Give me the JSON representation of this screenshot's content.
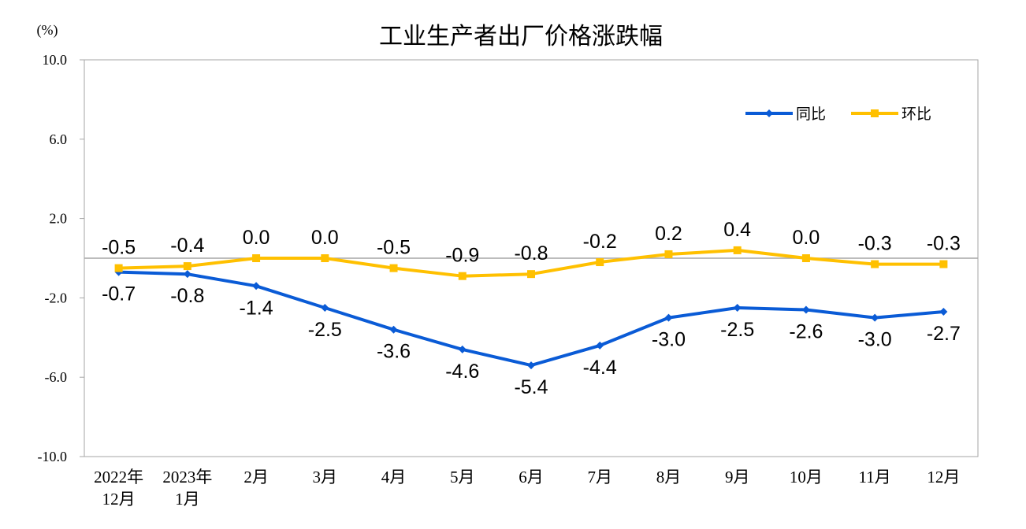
{
  "chart_data": {
    "type": "line",
    "title": "工业生产者出厂价格涨跌幅",
    "unit_label": "(%)",
    "categories": [
      [
        "2022年",
        "12月"
      ],
      [
        "2023年",
        "1月"
      ],
      [
        "2月"
      ],
      [
        "3月"
      ],
      [
        "4月"
      ],
      [
        "5月"
      ],
      [
        "6月"
      ],
      [
        "7月"
      ],
      [
        "8月"
      ],
      [
        "9月"
      ],
      [
        "10月"
      ],
      [
        "11月"
      ],
      [
        "12月"
      ]
    ],
    "series": [
      {
        "name": "同比",
        "color": "#0a5bd6",
        "marker": "diamond",
        "values": [
          -0.7,
          -0.8,
          -1.4,
          -2.5,
          -3.6,
          -4.6,
          -5.4,
          -4.4,
          -3.0,
          -2.5,
          -2.6,
          -3.0,
          -2.7
        ],
        "labels": [
          "-0.7",
          "-0.8",
          "-1.4",
          "-2.5",
          "-3.6",
          "-4.6",
          "-5.4",
          "-4.4",
          "-3.0",
          "-2.5",
          "-2.6",
          "-3.0",
          "-2.7"
        ],
        "label_position": "below"
      },
      {
        "name": "环比",
        "color": "#ffc000",
        "marker": "square",
        "values": [
          -0.5,
          -0.4,
          0.0,
          0.0,
          -0.5,
          -0.9,
          -0.8,
          -0.2,
          0.2,
          0.4,
          0.0,
          -0.3,
          -0.3
        ],
        "labels": [
          "-0.5",
          "-0.4",
          "0.0",
          "0.0",
          "-0.5",
          "-0.9",
          "-0.8",
          "-0.2",
          "0.2",
          "0.4",
          "0.0",
          "-0.3",
          "-0.3"
        ],
        "label_position": "above"
      }
    ],
    "ylim": [
      -10.0,
      10.0
    ],
    "yticks": [
      -10.0,
      -6.0,
      -2.0,
      2.0,
      6.0,
      10.0
    ],
    "ytick_labels": [
      "-10.0",
      "-6.0",
      "-2.0",
      "2.0",
      "6.0",
      "10.0"
    ],
    "grid": false,
    "zero_line": true,
    "legend_position": "top-right"
  }
}
